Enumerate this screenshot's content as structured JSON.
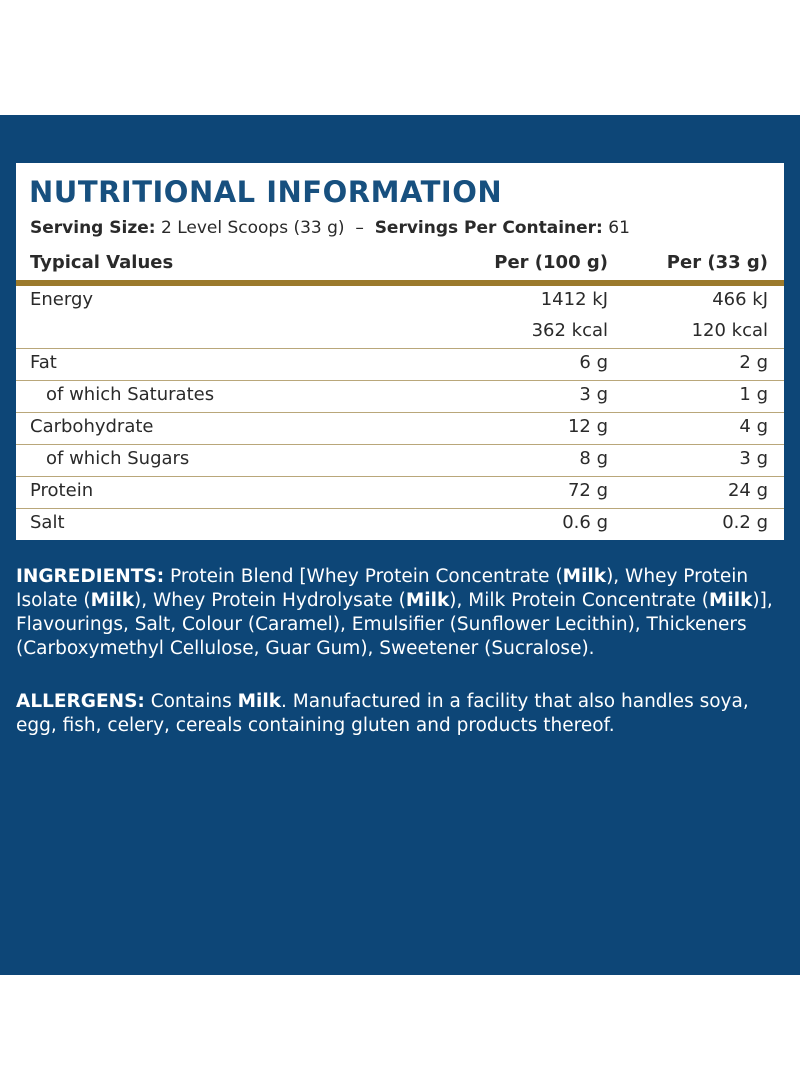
{
  "title": "NUTRITIONAL INFORMATION",
  "serving": {
    "size_label": "Serving Size:",
    "size": "2 Level Scoops (33 g)",
    "separator": "–",
    "per_container_label": "Servings Per Container:",
    "per_container": "61"
  },
  "table": {
    "headers": [
      "Typical Values",
      "Per (100 g)",
      "Per (33 g)"
    ],
    "rows": [
      {
        "label": "Energy",
        "indent": false,
        "per_100g": [
          "1412 kJ",
          "362 kcal"
        ],
        "per_serving": [
          "466 kJ",
          "120 kcal"
        ]
      },
      {
        "label": "Fat",
        "indent": false,
        "per_100g": [
          "6 g"
        ],
        "per_serving": [
          "2 g"
        ]
      },
      {
        "label": "of which Saturates",
        "indent": true,
        "per_100g": [
          "3 g"
        ],
        "per_serving": [
          "1 g"
        ]
      },
      {
        "label": "Carbohydrate",
        "indent": false,
        "per_100g": [
          "12 g"
        ],
        "per_serving": [
          "4 g"
        ]
      },
      {
        "label": "of which Sugars",
        "indent": true,
        "per_100g": [
          "8 g"
        ],
        "per_serving": [
          "3 g"
        ]
      },
      {
        "label": "Protein",
        "indent": false,
        "per_100g": [
          "72 g"
        ],
        "per_serving": [
          "24 g"
        ]
      },
      {
        "label": "Salt",
        "indent": false,
        "per_100g": [
          "0.6 g"
        ],
        "per_serving": [
          "0.2 g"
        ]
      }
    ]
  },
  "paragraphs": [
    [
      {
        "text": "INGREDIENTS:",
        "bold": true
      },
      {
        "text": " Protein Blend [Whey Protein Concentrate (",
        "bold": false
      },
      {
        "text": "Milk",
        "bold": true
      },
      {
        "text": "), Whey Protein Isolate (",
        "bold": false
      },
      {
        "text": "Milk",
        "bold": true
      },
      {
        "text": "), Whey Protein Hydrolysate (",
        "bold": false
      },
      {
        "text": "Milk",
        "bold": true
      },
      {
        "text": "), Milk Protein Concentrate (",
        "bold": false
      },
      {
        "text": "Milk",
        "bold": true
      },
      {
        "text": ")], Flavourings, Salt, Colour (Caramel), Emulsifier (Sunflower Lecithin), Thickeners (Carboxymethyl Cellulose, Guar Gum), Sweetener (Sucralose).",
        "bold": false
      }
    ],
    [
      {
        "text": "ALLERGENS:",
        "bold": true
      },
      {
        "text": " Contains ",
        "bold": false
      },
      {
        "text": "Milk",
        "bold": true
      },
      {
        "text": ". Manufactured in a facility that also handles soya, egg, fish, celery, cereals containing gluten and products thereof.",
        "bold": false
      }
    ]
  ]
}
